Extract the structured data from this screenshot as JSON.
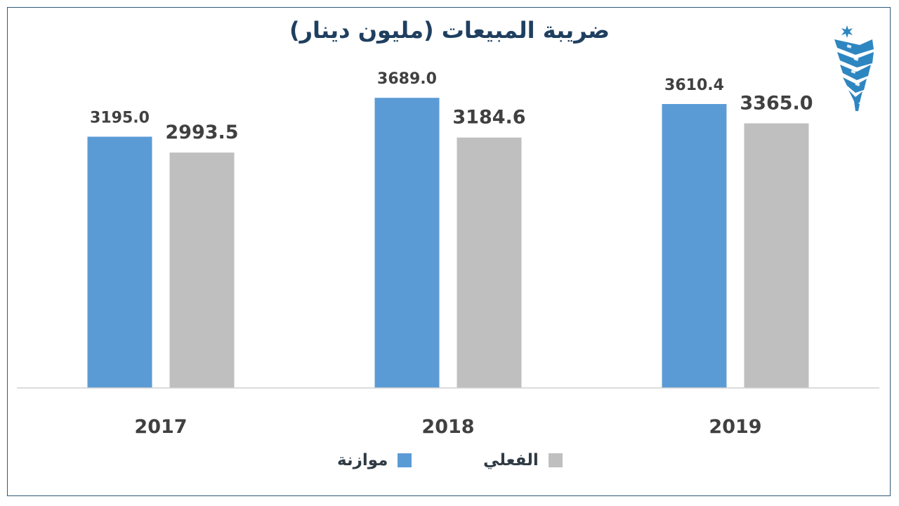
{
  "chart_data": {
    "type": "bar",
    "title": "ضريبة المبيعات (مليون دينار)",
    "categories": [
      "2017",
      "2018",
      "2019"
    ],
    "series": [
      {
        "name": "موازنة",
        "values": [
          3195.0,
          3689.0,
          3610.4
        ],
        "color": "#5b9bd5"
      },
      {
        "name": "الفعلي",
        "values": [
          2993.5,
          3184.6,
          3365.0
        ],
        "color": "#bfbfbf"
      }
    ],
    "data_labels": [
      [
        "3195.0",
        "3689.0",
        "3610.4"
      ],
      [
        "2993.5",
        "3184.6",
        "3365.0"
      ]
    ],
    "ylim": [
      0,
      3700
    ],
    "grid": false,
    "legend_position": "bottom",
    "axis_color": "#d0d0d0",
    "label_color": "#404040"
  },
  "logo": {
    "icon": "jordan-star-stripes-logo",
    "color": "#2e86c1"
  }
}
